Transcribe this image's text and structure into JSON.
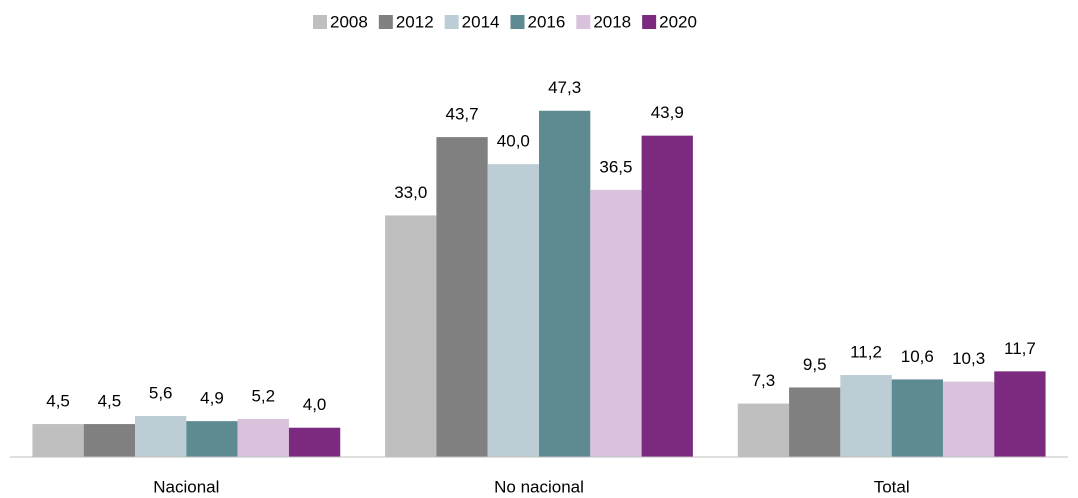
{
  "chart_data": {
    "type": "bar",
    "categories": [
      "Nacional",
      "No nacional",
      "Total"
    ],
    "series": [
      {
        "name": "2008",
        "color": "#bfbfbf",
        "values": [
          4.5,
          33.0,
          7.3
        ],
        "value_labels": [
          "4,5",
          "33,0",
          "7,3"
        ]
      },
      {
        "name": "2012",
        "color": "#808080",
        "values": [
          4.5,
          43.7,
          9.5
        ],
        "value_labels": [
          "4,5",
          "43,7",
          "9,5"
        ]
      },
      {
        "name": "2014",
        "color": "#bccdd5",
        "values": [
          5.6,
          40.0,
          11.2
        ],
        "value_labels": [
          "5,6",
          "40,0",
          "11,2"
        ]
      },
      {
        "name": "2016",
        "color": "#5e8a92",
        "values": [
          4.9,
          47.3,
          10.6
        ],
        "value_labels": [
          "4,9",
          "47,3",
          "10,6"
        ]
      },
      {
        "name": "2018",
        "color": "#d9c3dc",
        "values": [
          5.2,
          36.5,
          10.3
        ],
        "value_labels": [
          "5,2",
          "36,5",
          "10,3"
        ]
      },
      {
        "name": "2020",
        "color": "#7b2a80",
        "values": [
          4.0,
          43.9,
          11.7
        ],
        "value_labels": [
          "4,0",
          "43,9",
          "11,7"
        ]
      }
    ],
    "ylim": [
      0,
      50
    ],
    "legend": "top"
  }
}
